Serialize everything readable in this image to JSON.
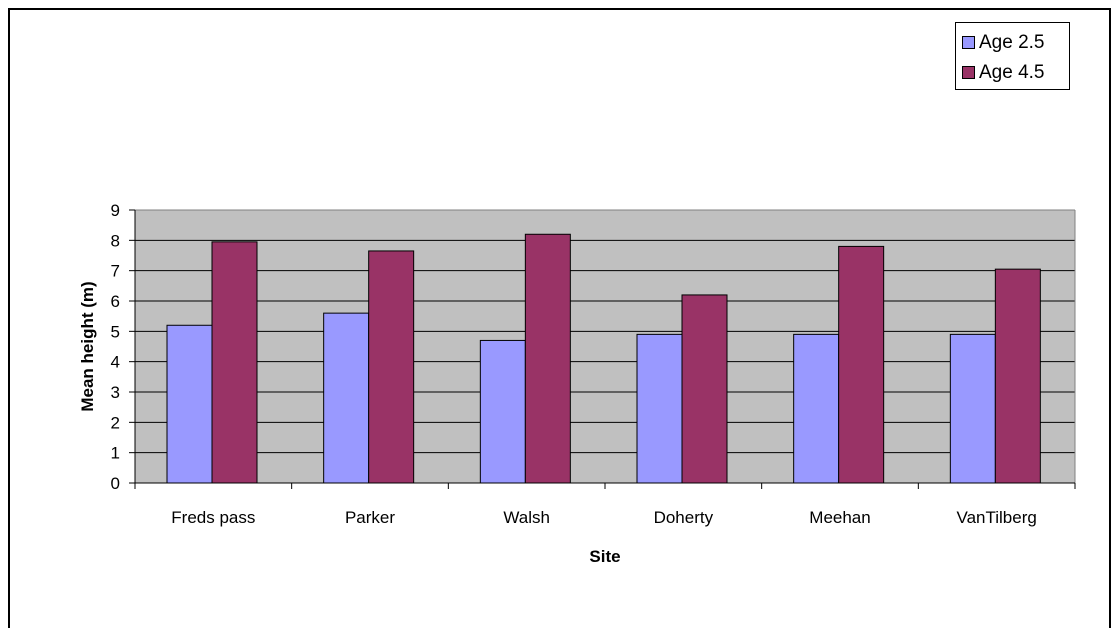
{
  "chart_data": {
    "type": "bar",
    "title": "",
    "xlabel": "Site",
    "ylabel": "Mean height (m)",
    "ylim": [
      0,
      9
    ],
    "yticks": [
      0,
      1,
      2,
      3,
      4,
      5,
      6,
      7,
      8,
      9
    ],
    "grid": true,
    "legend_position": "top-right",
    "categories": [
      "Freds pass",
      "Parker",
      "Walsh",
      "Doherty",
      "Meehan",
      "VanTilberg"
    ],
    "series": [
      {
        "name": "Age 2.5",
        "color": "#9999ff",
        "values": [
          5.2,
          5.6,
          4.7,
          4.9,
          4.9,
          4.9
        ]
      },
      {
        "name": "Age 4.5",
        "color": "#993366",
        "values": [
          7.95,
          7.65,
          8.2,
          6.2,
          7.8,
          7.05
        ]
      }
    ]
  }
}
